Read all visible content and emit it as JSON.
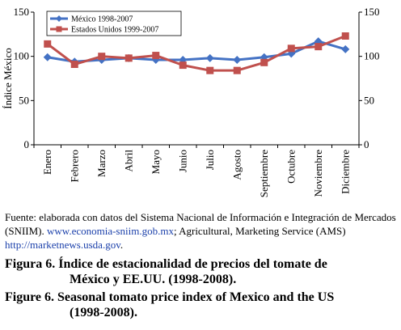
{
  "chart_data": {
    "type": "line",
    "categories": [
      "Enero",
      "Febrero",
      "Marzo",
      "Abril",
      "Mayo",
      "Junio",
      "Julio",
      "Agosto",
      "Septiembre",
      "Octubre",
      "Noviembre",
      "Diciembre"
    ],
    "series": [
      {
        "name": "México 1998-2007",
        "color": "#4472c4",
        "marker": "diamond",
        "values": [
          99,
          94,
          96,
          98,
          96,
          96,
          98,
          96,
          99,
          103,
          117,
          108
        ]
      },
      {
        "name": "Estados Unidos 1999-2007",
        "color": "#c0504d",
        "marker": "square",
        "values": [
          114,
          91,
          100,
          98,
          101,
          90,
          84,
          84,
          93,
          109,
          111,
          123
        ]
      }
    ],
    "ylabel": "Índice México",
    "y2label": "",
    "ylim": [
      0,
      150
    ],
    "yticks": [
      0,
      50,
      100,
      150
    ],
    "grid": false,
    "legend": "top-left"
  },
  "source": {
    "text": "Fuente: elaborada con datos del Sistema Nacional de Información e Integración de Mercados (SNIIM). ",
    "link1": "www.economia-sniim.gob.mx",
    "middle": "; Agricultural, Marketing Service (AMS) ",
    "link2": "http://marketnews.usda.gov",
    "end": "."
  },
  "caption_es": {
    "line1": "Figura 6. Índice de estacionalidad de precios del tomate de",
    "line2": "México y EE.UU. (1998-2008)."
  },
  "caption_en": {
    "line1": "Figure 6. Seasonal tomato price index of Mexico and the US",
    "line2": "(1998-2008)."
  }
}
